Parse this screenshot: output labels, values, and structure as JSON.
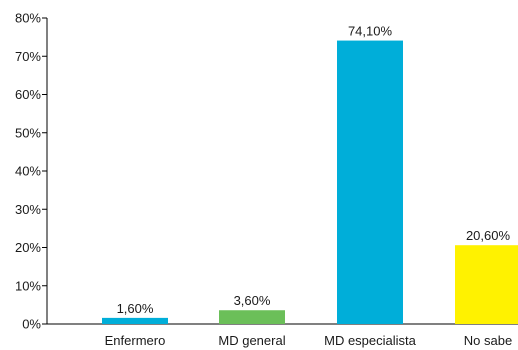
{
  "chart_data": {
    "type": "bar",
    "categories": [
      "Enfermero",
      "MD general",
      "MD especialista",
      "No sabe"
    ],
    "values": [
      1.6,
      3.6,
      74.1,
      20.6
    ],
    "data_labels": [
      "1,60%",
      "3,60%",
      "74,10%",
      "20,60%"
    ],
    "colors": [
      "#00aed9",
      "#6bbf59",
      "#00aed9",
      "#fff200"
    ],
    "y_ticks": [
      0,
      10,
      20,
      30,
      40,
      50,
      60,
      70,
      80
    ],
    "y_tick_labels": [
      "0%",
      "10%",
      "20%",
      "30%",
      "40%",
      "50%",
      "60%",
      "70%",
      "80%"
    ],
    "ylim": [
      0,
      80
    ],
    "grid": false,
    "legend": "none",
    "title": "",
    "xlabel": "",
    "ylabel": ""
  }
}
